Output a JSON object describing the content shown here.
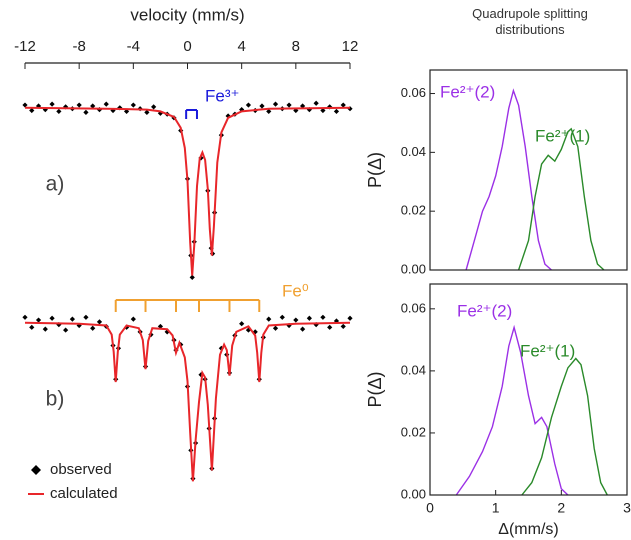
{
  "chart_data": [
    {
      "type": "spectrum",
      "panel_label": "a)",
      "xlabel": "velocity (mm/s)",
      "xlim": [
        -12,
        12
      ],
      "xticks": [
        -12,
        -8,
        -4,
        0,
        4,
        8,
        12
      ],
      "ylim": [
        0.81,
        1.025
      ],
      "series": [
        {
          "color": "#000000",
          "marker": "diamond",
          "x": [
            -12,
            -11.5,
            -11,
            -10.5,
            -10,
            -9.5,
            -9,
            -8.5,
            -8,
            -7.5,
            -7,
            -6.5,
            -6,
            -5.5,
            -5,
            -4.5,
            -4,
            -3.5,
            -3,
            -2.5,
            -2,
            -1.5,
            -1,
            -0.5,
            0,
            0.25,
            0.35,
            0.5,
            1,
            1.5,
            1.75,
            1.85,
            2,
            2.5,
            3,
            3.5,
            4,
            4.5,
            5,
            5.5,
            6,
            6.5,
            7,
            7.5,
            8,
            8.5,
            9,
            9.5,
            10,
            10.5,
            11,
            11.5,
            12
          ],
          "values": [
            1.003,
            0.997,
            1.002,
            0.998,
            1.004,
            0.996,
            1.001,
            0.999,
            1.003,
            0.995,
            1.002,
            0.998,
            1.004,
            0.997,
            1.0,
            0.996,
            1.003,
            0.999,
            0.995,
            1.001,
            0.994,
            0.993,
            0.989,
            0.975,
            0.922,
            0.838,
            0.814,
            0.853,
            0.945,
            0.909,
            0.846,
            0.84,
            0.885,
            0.97,
            0.991,
            0.993,
            0.998,
            1.003,
            0.997,
            1.002,
            0.996,
            1.004,
            0.999,
            1.003,
            0.997,
            1.002,
            0.998,
            1.005,
            0.997,
            1.001,
            0.996,
            1.003,
            0.999
          ]
        },
        {
          "color": "#e8262a",
          "x": [
            -12,
            -6,
            -3,
            -2,
            -1,
            -0.5,
            -0.2,
            0,
            0.2,
            0.35,
            0.5,
            0.7,
            0.9,
            1.1,
            1.3,
            1.5,
            1.65,
            1.8,
            1.95,
            2.2,
            2.5,
            3,
            4,
            6,
            12
          ],
          "values": [
            1.0,
            0.999,
            0.998,
            0.996,
            0.99,
            0.978,
            0.956,
            0.92,
            0.852,
            0.816,
            0.85,
            0.914,
            0.944,
            0.951,
            0.943,
            0.911,
            0.867,
            0.838,
            0.87,
            0.94,
            0.973,
            0.989,
            0.996,
            0.999,
            1.0
          ]
        }
      ],
      "annotations": [
        {
          "text": "Fe³⁺",
          "color": "#1a1adb",
          "lines": [
            -0.1,
            0.7
          ]
        }
      ]
    },
    {
      "type": "spectrum",
      "panel_label": "b)",
      "xlim": [
        -12,
        12
      ],
      "ylim": [
        0.8,
        1.025
      ],
      "legend": "lower left",
      "series": [
        {
          "name": "observed",
          "color": "#000000",
          "marker": "diamond",
          "x": [
            -12,
            -11.5,
            -11,
            -10.5,
            -10,
            -9.5,
            -9,
            -8.5,
            -8,
            -7.5,
            -7,
            -6.5,
            -6,
            -5.5,
            -5.3,
            -5.1,
            -4.5,
            -4,
            -3.5,
            -3.1,
            -2.7,
            -2,
            -1.5,
            -1,
            -0.85,
            -0.5,
            0,
            0.25,
            0.4,
            0.6,
            1,
            1.3,
            1.6,
            1.8,
            2,
            2.5,
            2.9,
            3.1,
            3.5,
            4,
            4.5,
            5,
            5.3,
            5.6,
            6,
            6.5,
            7,
            7.5,
            8,
            8.5,
            9,
            9.5,
            10,
            10.5,
            11,
            11.5,
            12
          ],
          "values": [
            1.006,
            0.995,
            1.003,
            0.993,
            1.005,
            0.998,
            0.992,
            1.004,
            0.997,
            1.006,
            0.994,
            1.001,
            0.996,
            0.975,
            0.938,
            0.972,
            0.995,
            1.004,
            0.99,
            0.952,
            0.987,
            0.996,
            0.99,
            0.981,
            0.97,
            0.976,
            0.93,
            0.86,
            0.829,
            0.868,
            0.943,
            0.938,
            0.884,
            0.84,
            0.895,
            0.972,
            0.965,
            0.945,
            0.986,
            0.999,
            0.992,
            0.99,
            0.938,
            0.984,
            1.004,
            0.994,
            1.006,
            0.997,
            1.003,
            0.993,
            1.005,
            0.998,
            1.006,
            0.995,
            1.002,
            0.996,
            1.005
          ]
        },
        {
          "name": "calculated",
          "color": "#e8262a",
          "x": [
            -12,
            -8,
            -6,
            -5.6,
            -5.45,
            -5.3,
            -5.15,
            -5,
            -4.5,
            -3.6,
            -3.3,
            -3.1,
            -2.9,
            -2.6,
            -1.5,
            -1.1,
            -0.85,
            -0.6,
            -0.2,
            0,
            0.2,
            0.4,
            0.6,
            0.85,
            1.1,
            1.3,
            1.5,
            1.8,
            2.1,
            2.4,
            2.7,
            2.9,
            3.1,
            3.3,
            3.6,
            4.5,
            5,
            5.15,
            5.3,
            5.45,
            5.6,
            6,
            8,
            12
          ],
          "values": [
            1.0,
            0.999,
            0.997,
            0.987,
            0.968,
            0.935,
            0.968,
            0.987,
            0.997,
            0.994,
            0.981,
            0.949,
            0.98,
            0.994,
            0.993,
            0.986,
            0.967,
            0.978,
            0.962,
            0.936,
            0.879,
            0.826,
            0.871,
            0.913,
            0.945,
            0.94,
            0.91,
            0.838,
            0.917,
            0.965,
            0.976,
            0.97,
            0.942,
            0.975,
            0.99,
            0.996,
            0.986,
            0.967,
            0.935,
            0.967,
            0.987,
            0.997,
            0.999,
            1.0
          ]
        }
      ],
      "annotations": [
        {
          "text": "Fe⁰",
          "color": "#f0a030",
          "lines": [
            -5.3,
            -3.1,
            -0.85,
            0.85,
            3.1,
            5.3
          ]
        }
      ]
    },
    {
      "type": "line",
      "title": "Quadrupole splitting distributions",
      "ylabel": "P(Δ)",
      "xlim": [
        0,
        3
      ],
      "ylim": [
        0,
        0.068
      ],
      "yticks": [
        {
          "value": 0,
          "label": "0.00"
        },
        {
          "value": 0.02,
          "label": "0.02"
        },
        {
          "value": 0.04,
          "label": "0.04"
        },
        {
          "value": 0.06,
          "label": "0.06"
        }
      ],
      "series": [
        {
          "name": "Fe²⁺(2)",
          "color": "#9b30e6",
          "x": [
            0.55,
            0.7,
            0.8,
            0.9,
            1.0,
            1.1,
            1.2,
            1.27,
            1.35,
            1.45,
            1.55,
            1.65,
            1.75,
            1.85
          ],
          "values": [
            0,
            0.012,
            0.02,
            0.025,
            0.032,
            0.042,
            0.055,
            0.061,
            0.056,
            0.042,
            0.025,
            0.01,
            0.002,
            0
          ]
        },
        {
          "name": "Fe²⁺(1)",
          "color": "#2a8a2a",
          "x": [
            1.35,
            1.5,
            1.6,
            1.7,
            1.8,
            1.9,
            2.0,
            2.1,
            2.15,
            2.25,
            2.35,
            2.45,
            2.55,
            2.65
          ],
          "values": [
            0,
            0.01,
            0.025,
            0.036,
            0.039,
            0.037,
            0.041,
            0.047,
            0.048,
            0.042,
            0.025,
            0.01,
            0.002,
            0
          ]
        }
      ]
    },
    {
      "type": "line",
      "ylabel": "P(Δ)",
      "xlabel": "Δ(mm/s)",
      "xlim": [
        0,
        3
      ],
      "xticks": [
        0,
        1,
        2,
        3
      ],
      "ylim": [
        0,
        0.068
      ],
      "yticks": [
        {
          "value": 0,
          "label": "0.00"
        },
        {
          "value": 0.02,
          "label": "0.02"
        },
        {
          "value": 0.04,
          "label": "0.04"
        },
        {
          "value": 0.06,
          "label": "0.06"
        }
      ],
      "series": [
        {
          "name": "Fe²⁺(2)",
          "color": "#9b30e6",
          "x": [
            0.4,
            0.6,
            0.8,
            0.95,
            1.1,
            1.2,
            1.28,
            1.38,
            1.5,
            1.6,
            1.7,
            1.78,
            1.9,
            2.0,
            2.1
          ],
          "values": [
            0,
            0.006,
            0.014,
            0.022,
            0.035,
            0.048,
            0.054,
            0.046,
            0.032,
            0.023,
            0.025,
            0.022,
            0.01,
            0.002,
            0
          ]
        },
        {
          "name": "Fe²⁺(1)",
          "color": "#2a8a2a",
          "x": [
            1.4,
            1.55,
            1.7,
            1.85,
            2.0,
            2.1,
            2.22,
            2.3,
            2.4,
            2.5,
            2.6,
            2.7
          ],
          "values": [
            0,
            0.004,
            0.012,
            0.025,
            0.035,
            0.041,
            0.044,
            0.042,
            0.032,
            0.015,
            0.004,
            0
          ]
        }
      ]
    }
  ]
}
